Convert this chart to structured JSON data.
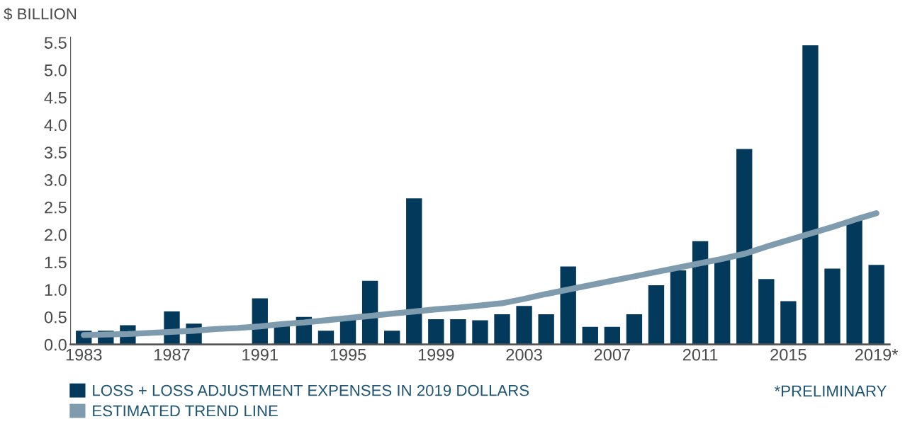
{
  "chart_data": {
    "type": "bar",
    "ylabel": "$ BILLION",
    "categories": [
      "1983",
      null,
      null,
      null,
      "1987",
      null,
      null,
      null,
      "1991",
      null,
      null,
      null,
      "1995",
      null,
      null,
      null,
      "1999",
      null,
      null,
      null,
      "2003",
      null,
      null,
      null,
      "2007",
      null,
      null,
      null,
      "2011",
      null,
      null,
      null,
      "2015",
      null,
      null,
      null,
      "2019*"
    ],
    "series": [
      {
        "name": "LOSS + LOSS ADJUSTMENT EXPENSES IN 2019 DOLLARS",
        "color": "#033a5c",
        "values": [
          0.25,
          0.25,
          0.35,
          null,
          0.6,
          0.38,
          null,
          null,
          0.84,
          0.35,
          0.5,
          0.25,
          0.45,
          1.16,
          0.25,
          2.66,
          0.46,
          0.46,
          0.44,
          0.55,
          0.7,
          0.55,
          1.42,
          0.32,
          0.32,
          0.55,
          1.08,
          1.35,
          1.88,
          1.57,
          3.56,
          1.19,
          0.79,
          5.45,
          1.38,
          2.27,
          1.45
        ]
      },
      {
        "name": "ESTIMATED TREND LINE",
        "type": "line",
        "color": "#7f9cae",
        "values": [
          0.17,
          0.18,
          0.19,
          0.21,
          0.23,
          0.25,
          0.28,
          0.3,
          0.33,
          0.37,
          0.4,
          0.44,
          0.48,
          0.52,
          0.56,
          0.6,
          0.64,
          0.67,
          0.71,
          0.75,
          0.83,
          0.92,
          1.0,
          1.08,
          1.16,
          1.24,
          1.32,
          1.4,
          1.48,
          1.56,
          1.65,
          1.78,
          1.9,
          2.02,
          2.14,
          2.27,
          2.39
        ]
      }
    ],
    "ylim": [
      0,
      5.6
    ],
    "yticks": [
      {
        "value": 0,
        "label": "0.0"
      },
      0.5,
      {
        "value": 1,
        "label": "1.0"
      },
      1.5,
      {
        "value": 2,
        "label": "2.0"
      },
      2.5,
      {
        "value": 3,
        "label": "3.0"
      },
      3.5,
      {
        "value": 4,
        "label": "4.0"
      },
      4.5,
      {
        "value": 5,
        "label": "5.0"
      },
      5.5
    ],
    "grid": false,
    "legend": "bottom left",
    "annotations": [
      "*PRELIMINARY"
    ]
  }
}
